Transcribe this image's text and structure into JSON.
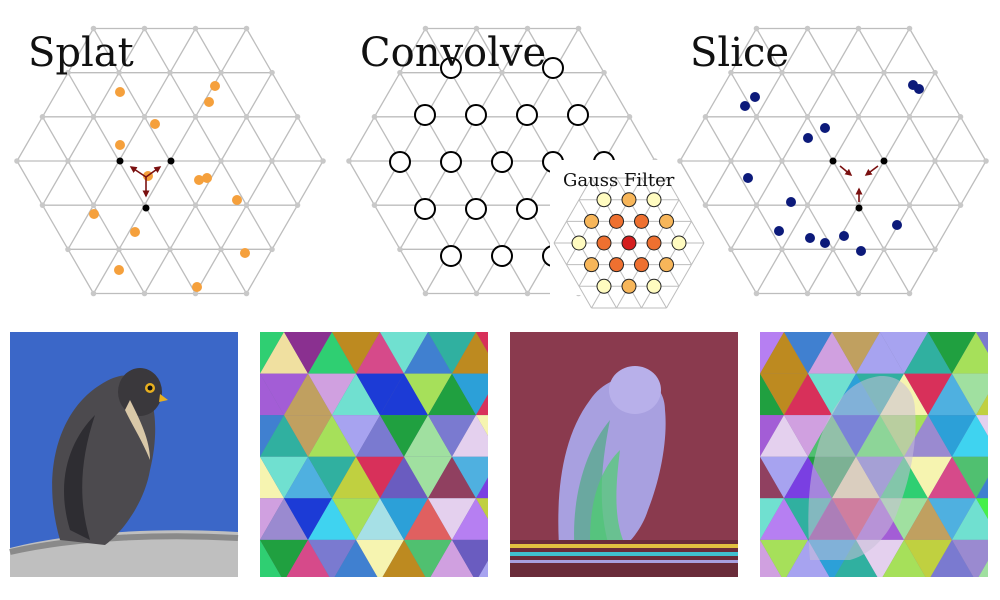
{
  "panels": [
    {
      "id": "splat",
      "label": "Splat"
    },
    {
      "id": "convolve",
      "label": "Convolve"
    },
    {
      "id": "slice",
      "label": "Slice"
    }
  ],
  "gauss_filter": {
    "label": "Gauss Filter"
  },
  "colors": {
    "grid_line": "#bdbdbd",
    "grid_node": "#c8c8c8",
    "lattice_node": "#000000",
    "arrow": "#7a1010",
    "splat_point": "#f5a03c",
    "slice_point": "#0c1a7a",
    "convolve_circle": "#000000",
    "gauss_ring_outer": "#fffbc0",
    "gauss_ring_mid": "#f7b65a",
    "gauss_ring_inner": "#ee7030",
    "gauss_center": "#d41f1f",
    "sky": "#3b67c8",
    "owl_background": "#8a3a4e",
    "owl_body": "#a8a0e0"
  },
  "photos": [
    {
      "name": "falcon-photo",
      "subject": "falcon"
    },
    {
      "name": "triangle-texture-photo",
      "subject": "triangles"
    },
    {
      "name": "owl-photo",
      "subject": "owl"
    },
    {
      "name": "owl-triangles-photo",
      "subject": "owl-triangles"
    }
  ]
}
